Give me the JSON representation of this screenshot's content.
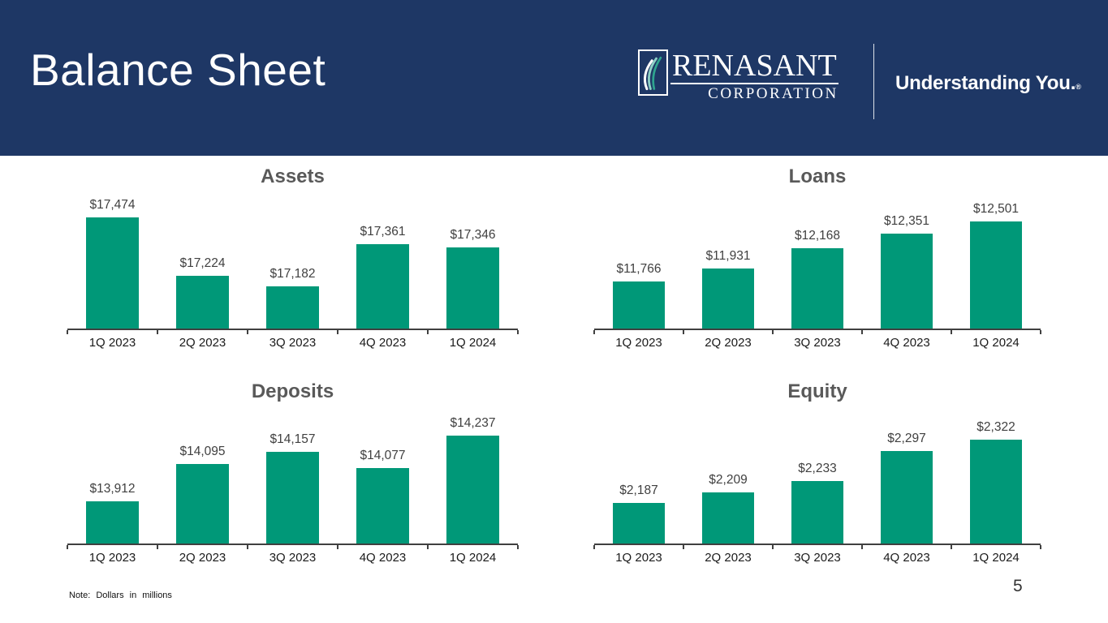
{
  "colors": {
    "header_bg": "#1E3765",
    "bar": "#009878",
    "chart_title": "#595959",
    "value_label": "#404040",
    "axis": "#404040",
    "tick_label": "#1A1A1A"
  },
  "header": {
    "title": "Balance Sheet",
    "logo": {
      "icon": "renasant-swoosh-icon",
      "wordmark": "RENASANT",
      "subtitle": "CORPORATION"
    },
    "tagline": "Understanding You.",
    "tagline_mark": "®"
  },
  "chart_data": [
    {
      "type": "bar",
      "title": "Assets",
      "categories": [
        "1Q 2023",
        "2Q 2023",
        "3Q 2023",
        "4Q 2023",
        "1Q 2024"
      ],
      "values": [
        17474,
        17224,
        17182,
        17361,
        17346
      ],
      "labels": [
        "$17,474",
        "$17,224",
        "$17,182",
        "$17,361",
        "$17,346"
      ],
      "ylim": [
        17000,
        17600
      ],
      "grid": false,
      "legend": "none"
    },
    {
      "type": "bar",
      "title": "Loans",
      "categories": [
        "1Q 2023",
        "2Q 2023",
        "3Q 2023",
        "4Q 2023",
        "1Q 2024"
      ],
      "values": [
        11766,
        11931,
        12168,
        12351,
        12501
      ],
      "labels": [
        "$11,766",
        "$11,931",
        "$12,168",
        "$12,351",
        "$12,501"
      ],
      "ylim": [
        11200,
        12900
      ],
      "grid": false,
      "legend": "none"
    },
    {
      "type": "bar",
      "title": "Deposits",
      "categories": [
        "1Q 2023",
        "2Q 2023",
        "3Q 2023",
        "4Q 2023",
        "1Q 2024"
      ],
      "values": [
        13912,
        14095,
        14157,
        14077,
        14237
      ],
      "labels": [
        "$13,912",
        "$14,095",
        "$14,157",
        "$14,077",
        "$14,237"
      ],
      "ylim": [
        13700,
        14400
      ],
      "grid": false,
      "legend": "none"
    },
    {
      "type": "bar",
      "title": "Equity",
      "categories": [
        "1Q 2023",
        "2Q 2023",
        "3Q 2023",
        "4Q 2023",
        "1Q 2024"
      ],
      "values": [
        2187,
        2209,
        2233,
        2297,
        2322
      ],
      "labels": [
        "$2,187",
        "$2,209",
        "$2,233",
        "$2,297",
        "$2,322"
      ],
      "ylim": [
        2100,
        2400
      ],
      "grid": false,
      "legend": "none"
    }
  ],
  "footer": {
    "note": "Note: Dollars in millions",
    "page": "5"
  }
}
